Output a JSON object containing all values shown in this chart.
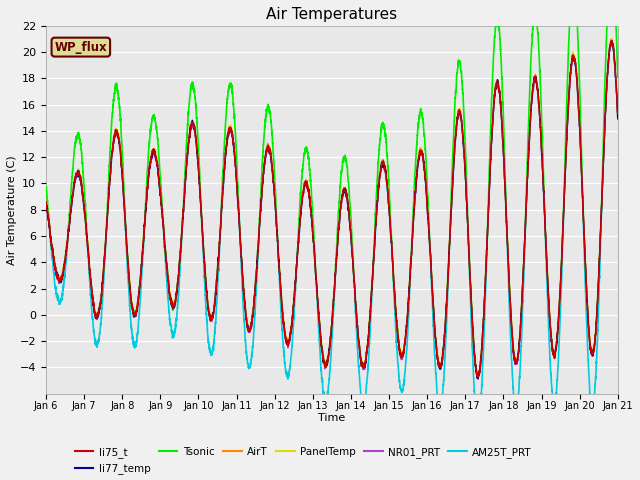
{
  "title": "Air Temperatures",
  "xlabel": "Time",
  "ylabel": "Air Temperature (C)",
  "ylim": [
    -6,
    22
  ],
  "yticks": [
    -4,
    -2,
    0,
    2,
    4,
    6,
    8,
    10,
    12,
    14,
    16,
    18,
    20,
    22
  ],
  "x_tick_labels": [
    "Jan 6",
    "Jan 7",
    "Jan 8",
    "Jan 9",
    "Jan 10",
    "Jan 11",
    "Jan 12",
    "Jan 13",
    "Jan 14",
    "Jan 15",
    "Jan 16",
    "Jan 17",
    "Jan 18",
    "Jan 19",
    "Jan 20",
    "Jan 21"
  ],
  "bg_color": "#e8e8e8",
  "fig_color": "#f0f0f0",
  "grid_color": "#ffffff",
  "series_order": [
    "AM25T_PRT",
    "Tsonic",
    "NR01_PRT",
    "PanelTemp",
    "AirT",
    "li77_temp",
    "li75_t"
  ],
  "series": {
    "li75_t": {
      "color": "#cc0000",
      "lw": 1.0,
      "zorder": 5
    },
    "li77_temp": {
      "color": "#000099",
      "lw": 1.0,
      "zorder": 5
    },
    "Tsonic": {
      "color": "#00ee00",
      "lw": 1.2,
      "zorder": 4
    },
    "AirT": {
      "color": "#ff8800",
      "lw": 1.0,
      "zorder": 5
    },
    "PanelTemp": {
      "color": "#dddd00",
      "lw": 1.0,
      "zorder": 5
    },
    "NR01_PRT": {
      "color": "#aa44cc",
      "lw": 1.0,
      "zorder": 5
    },
    "AM25T_PRT": {
      "color": "#00ccdd",
      "lw": 1.2,
      "zorder": 3
    }
  },
  "legend_order": [
    "li75_t",
    "li77_temp",
    "Tsonic",
    "AirT",
    "PanelTemp",
    "NR01_PRT",
    "AM25T_PRT"
  ],
  "wp_flux_label": "WP_flux",
  "wp_flux_bg": "#dddd99",
  "wp_flux_fg": "#660000"
}
